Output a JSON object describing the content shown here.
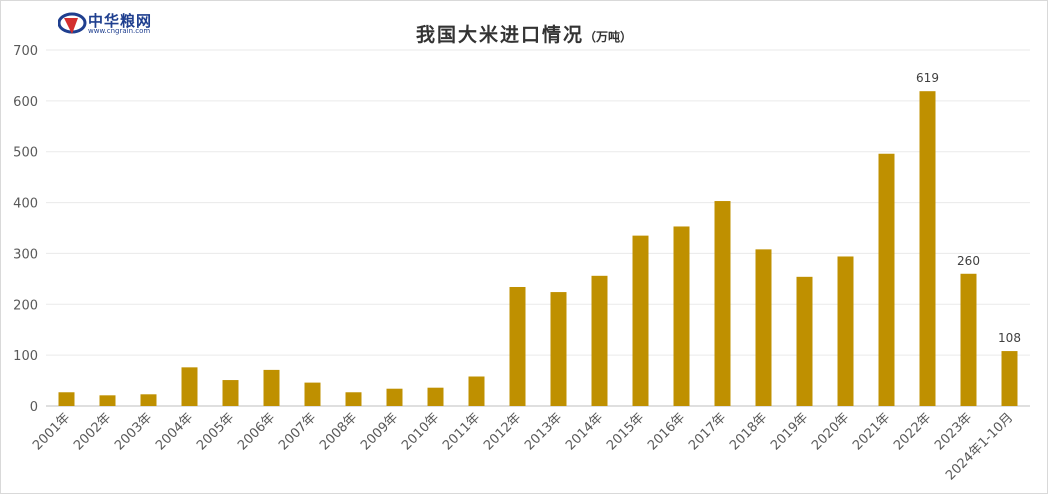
{
  "logo": {
    "name": "中华粮网",
    "url": "www.cngrain.com"
  },
  "chart_data": {
    "type": "bar",
    "title": "我国大米进口情况",
    "unit": "（万吨）",
    "xlabel": "",
    "ylabel": "",
    "ylim": [
      0,
      700
    ],
    "yticks": [
      0,
      100,
      200,
      300,
      400,
      500,
      600,
      700
    ],
    "grid": true,
    "color": "#bf9000",
    "categories": [
      "2001年",
      "2002年",
      "2003年",
      "2004年",
      "2005年",
      "2006年",
      "2007年",
      "2008年",
      "2009年",
      "2010年",
      "2011年",
      "2012年",
      "2013年",
      "2014年",
      "2015年",
      "2016年",
      "2017年",
      "2018年",
      "2019年",
      "2020年",
      "2021年",
      "2022年",
      "2023年",
      "2024年1-10月"
    ],
    "values": [
      27,
      21,
      23,
      76,
      51,
      71,
      46,
      27,
      34,
      36,
      58,
      234,
      224,
      256,
      335,
      353,
      403,
      308,
      254,
      294,
      496,
      619,
      260,
      108
    ],
    "data_labels": [
      "",
      "",
      "",
      "",
      "",
      "",
      "",
      "",
      "",
      "",
      "",
      "",
      "",
      "",
      "",
      "",
      "",
      "",
      "",
      "",
      "",
      "619",
      "260",
      "108"
    ]
  }
}
